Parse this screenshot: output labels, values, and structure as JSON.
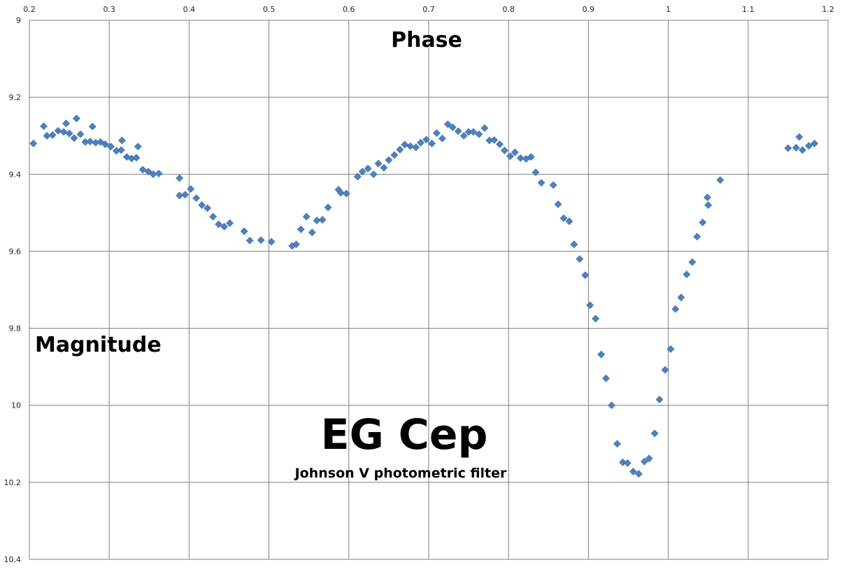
{
  "chart_data": {
    "type": "scatter",
    "title": "EG Cep",
    "subtitle": "Johnson V photometric filter",
    "xlabel": "Phase",
    "ylabel": "Magnitude",
    "xlim": [
      0.2,
      1.2
    ],
    "ylim": [
      9,
      10.4
    ],
    "y_inverted": true,
    "x_axis_position": "top",
    "grid": true,
    "marker": "diamond",
    "marker_color": "#4F81BD",
    "x_ticks": [
      "0.2",
      "0.3",
      "0.4",
      "0.5",
      "0.6",
      "0.7",
      "0.8",
      "0.9",
      "1",
      "1.1",
      "1.2"
    ],
    "y_ticks": [
      "9",
      "9.2",
      "9.4",
      "9.6",
      "9.8",
      "10",
      "10.2",
      "10.4"
    ],
    "points": [
      [
        0.205,
        9.32
      ],
      [
        0.218,
        9.275
      ],
      [
        0.222,
        9.3
      ],
      [
        0.229,
        9.298
      ],
      [
        0.236,
        9.287
      ],
      [
        0.243,
        9.29
      ],
      [
        0.246,
        9.268
      ],
      [
        0.25,
        9.294
      ],
      [
        0.256,
        9.306
      ],
      [
        0.259,
        9.255
      ],
      [
        0.264,
        9.296
      ],
      [
        0.27,
        9.316
      ],
      [
        0.276,
        9.315
      ],
      [
        0.279,
        9.276
      ],
      [
        0.283,
        9.318
      ],
      [
        0.289,
        9.316
      ],
      [
        0.295,
        9.322
      ],
      [
        0.302,
        9.328
      ],
      [
        0.309,
        9.339
      ],
      [
        0.315,
        9.337
      ],
      [
        0.316,
        9.312
      ],
      [
        0.322,
        9.355
      ],
      [
        0.328,
        9.359
      ],
      [
        0.334,
        9.357
      ],
      [
        0.336,
        9.328
      ],
      [
        0.342,
        9.388
      ],
      [
        0.349,
        9.393
      ],
      [
        0.355,
        9.4
      ],
      [
        0.362,
        9.398
      ],
      [
        0.388,
        9.41
      ],
      [
        0.388,
        9.455
      ],
      [
        0.395,
        9.453
      ],
      [
        0.402,
        9.438
      ],
      [
        0.409,
        9.462
      ],
      [
        0.416,
        9.48
      ],
      [
        0.423,
        9.488
      ],
      [
        0.43,
        9.51
      ],
      [
        0.437,
        9.53
      ],
      [
        0.444,
        9.536
      ],
      [
        0.451,
        9.527
      ],
      [
        0.469,
        9.548
      ],
      [
        0.476,
        9.572
      ],
      [
        0.49,
        9.571
      ],
      [
        0.503,
        9.575
      ],
      [
        0.529,
        9.586
      ],
      [
        0.534,
        9.582
      ],
      [
        0.54,
        9.543
      ],
      [
        0.547,
        9.51
      ],
      [
        0.554,
        9.551
      ],
      [
        0.56,
        9.52
      ],
      [
        0.567,
        9.518
      ],
      [
        0.574,
        9.486
      ],
      [
        0.587,
        9.44
      ],
      [
        0.59,
        9.448
      ],
      [
        0.597,
        9.45
      ],
      [
        0.611,
        9.406
      ],
      [
        0.617,
        9.393
      ],
      [
        0.624,
        9.385
      ],
      [
        0.631,
        9.4
      ],
      [
        0.637,
        9.372
      ],
      [
        0.644,
        9.383
      ],
      [
        0.65,
        9.363
      ],
      [
        0.657,
        9.35
      ],
      [
        0.664,
        9.336
      ],
      [
        0.67,
        9.323
      ],
      [
        0.677,
        9.327
      ],
      [
        0.684,
        9.33
      ],
      [
        0.69,
        9.318
      ],
      [
        0.697,
        9.31
      ],
      [
        0.704,
        9.32
      ],
      [
        0.71,
        9.293
      ],
      [
        0.717,
        9.307
      ],
      [
        0.724,
        9.27
      ],
      [
        0.73,
        9.278
      ],
      [
        0.737,
        9.288
      ],
      [
        0.744,
        9.3
      ],
      [
        0.75,
        9.29
      ],
      [
        0.756,
        9.29
      ],
      [
        0.763,
        9.296
      ],
      [
        0.77,
        9.28
      ],
      [
        0.776,
        9.312
      ],
      [
        0.782,
        9.311
      ],
      [
        0.789,
        9.322
      ],
      [
        0.795,
        9.338
      ],
      [
        0.802,
        9.353
      ],
      [
        0.808,
        9.343
      ],
      [
        0.815,
        9.358
      ],
      [
        0.822,
        9.36
      ],
      [
        0.828,
        9.355
      ],
      [
        0.834,
        9.395
      ],
      [
        0.841,
        9.422
      ],
      [
        0.856,
        9.428
      ],
      [
        0.862,
        9.478
      ],
      [
        0.869,
        9.514
      ],
      [
        0.876,
        9.522
      ],
      [
        0.882,
        9.582
      ],
      [
        0.889,
        9.62
      ],
      [
        0.896,
        9.662
      ],
      [
        0.902,
        9.74
      ],
      [
        0.909,
        9.775
      ],
      [
        0.916,
        9.868
      ],
      [
        0.922,
        9.93
      ],
      [
        0.929,
        10.0
      ],
      [
        0.936,
        10.1
      ],
      [
        0.943,
        10.148
      ],
      [
        0.949,
        10.15
      ],
      [
        0.956,
        10.172
      ],
      [
        0.963,
        10.178
      ],
      [
        0.97,
        10.146
      ],
      [
        0.976,
        10.138
      ],
      [
        0.983,
        10.073
      ],
      [
        0.989,
        9.985
      ],
      [
        0.996,
        9.908
      ],
      [
        1.003,
        9.854
      ],
      [
        1.009,
        9.75
      ],
      [
        1.016,
        9.72
      ],
      [
        1.023,
        9.66
      ],
      [
        1.03,
        9.628
      ],
      [
        1.036,
        9.562
      ],
      [
        1.043,
        9.525
      ],
      [
        1.049,
        9.46
      ],
      [
        1.05,
        9.48
      ],
      [
        1.065,
        9.415
      ],
      [
        1.15,
        9.332
      ],
      [
        1.16,
        9.331
      ],
      [
        1.164,
        9.303
      ],
      [
        1.168,
        9.337
      ],
      [
        1.176,
        9.326
      ],
      [
        1.183,
        9.32
      ]
    ]
  }
}
